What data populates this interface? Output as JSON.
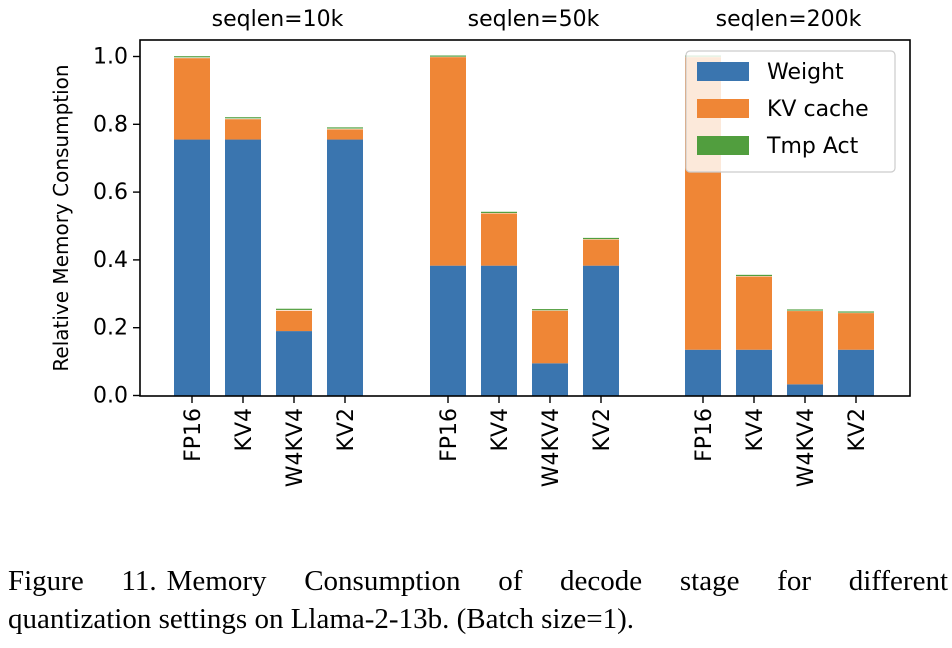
{
  "chart_data": {
    "type": "bar",
    "stacked": true,
    "ylabel": "Relative Memory Consumption",
    "ylim": [
      0,
      1.05
    ],
    "yticks": [
      "0.0",
      "0.2",
      "0.4",
      "0.6",
      "0.8",
      "1.0"
    ],
    "legend_position": "top-right",
    "series": [
      {
        "name": "Weight",
        "color": "#3a75af"
      },
      {
        "name": "KV cache",
        "color": "#ef8636"
      },
      {
        "name": "Tmp Act",
        "color": "#519e3e"
      }
    ],
    "groups": [
      {
        "label": "seqlen=10k",
        "categories": [
          "FP16",
          "KV4",
          "W4KV4",
          "KV2"
        ],
        "weight": [
          0.755,
          0.755,
          0.19,
          0.755
        ],
        "kv_cache": [
          0.24,
          0.06,
          0.06,
          0.03
        ],
        "tmp_act": [
          0.003,
          0.003,
          0.003,
          0.003
        ]
      },
      {
        "label": "seqlen=50k",
        "categories": [
          "FP16",
          "KV4",
          "W4KV4",
          "KV2"
        ],
        "weight": [
          0.383,
          0.383,
          0.095,
          0.383
        ],
        "kv_cache": [
          0.615,
          0.154,
          0.155,
          0.077
        ],
        "tmp_act": [
          0.002,
          0.002,
          0.002,
          0.002
        ]
      },
      {
        "label": "seqlen=200k",
        "categories": [
          "FP16",
          "KV4",
          "W4KV4",
          "KV2"
        ],
        "weight": [
          0.135,
          0.135,
          0.033,
          0.135
        ],
        "kv_cache": [
          0.863,
          0.216,
          0.216,
          0.108
        ],
        "tmp_act": [
          0.002,
          0.002,
          0.002,
          0.002
        ]
      }
    ]
  },
  "caption": {
    "label": "Figure 11.",
    "line1": "Memory Consumption of decode stage for different",
    "line2": "quantization settings on Llama-2-13b. (Batch size=1)."
  }
}
